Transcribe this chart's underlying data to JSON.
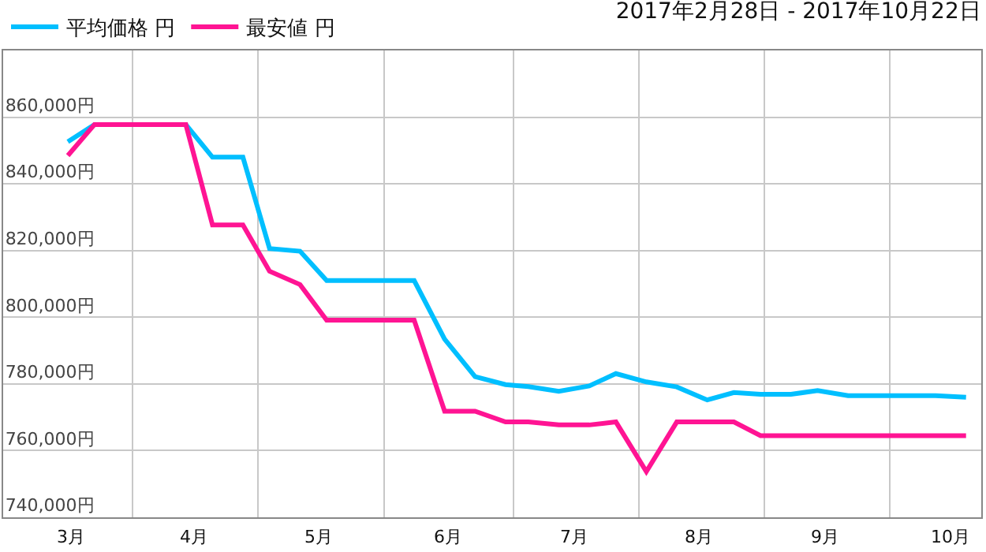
{
  "chart_data": {
    "type": "line",
    "title": "2017年2月28日 - 2017年10月22日",
    "x": [
      "2017-02-28",
      "2017-03-07",
      "2017-03-31",
      "2017-04-07",
      "2017-04-15",
      "2017-04-22",
      "2017-04-30",
      "2017-05-07",
      "2017-05-30",
      "2017-06-07",
      "2017-06-15",
      "2017-06-23",
      "2017-06-29",
      "2017-07-07",
      "2017-07-15",
      "2017-07-22",
      "2017-07-30",
      "2017-08-07",
      "2017-08-15",
      "2017-08-22",
      "2017-08-29",
      "2017-09-06",
      "2017-09-13",
      "2017-09-21",
      "2017-10-14",
      "2017-10-22"
    ],
    "series": [
      {
        "name": "平均価格 円",
        "color": "#00bfff",
        "values": [
          852600,
          857800,
          857800,
          848000,
          848000,
          820600,
          819800,
          811000,
          811000,
          793400,
          782200,
          779800,
          779200,
          777800,
          779400,
          783100,
          780600,
          779100,
          775200,
          777400,
          776900,
          776900,
          778000,
          776500,
          776500,
          776000
        ]
      },
      {
        "name": "最安値 円",
        "color": "#ff1493",
        "values": [
          848500,
          857800,
          857800,
          827700,
          827700,
          813800,
          809800,
          799100,
          799100,
          771800,
          771800,
          768600,
          768600,
          767700,
          767700,
          768600,
          753700,
          768600,
          768600,
          768600,
          764500,
          764500,
          764500,
          764500,
          764500,
          764500
        ]
      }
    ],
    "xlim": [
      "2017-02-11",
      "2017-10-26"
    ],
    "xticks": [
      {
        "value": "2017-03-01",
        "label": "3月"
      },
      {
        "value": "2017-03-17",
        "label": null
      },
      {
        "value": "2017-04-02",
        "label": "4月"
      },
      {
        "value": "2017-04-19",
        "label": null
      },
      {
        "value": "2017-05-05",
        "label": "5月"
      },
      {
        "value": "2017-05-22",
        "label": null
      },
      {
        "value": "2017-06-08",
        "label": "6月"
      },
      {
        "value": "2017-06-25",
        "label": null
      },
      {
        "value": "2017-07-11",
        "label": "7月"
      },
      {
        "value": "2017-07-28",
        "label": null
      },
      {
        "value": "2017-08-13",
        "label": "8月"
      },
      {
        "value": "2017-08-30",
        "label": null
      },
      {
        "value": "2017-09-15",
        "label": "9月"
      },
      {
        "value": "2017-10-02",
        "label": null
      },
      {
        "value": "2017-10-18",
        "label": "10月"
      }
    ],
    "ylim": [
      740000,
      880000
    ],
    "yticks": [
      {
        "value": 740000,
        "label": "740,000円"
      },
      {
        "value": 760000,
        "label": "760,000円"
      },
      {
        "value": 780000,
        "label": "780,000円"
      },
      {
        "value": 800000,
        "label": "800,000円"
      },
      {
        "value": 820000,
        "label": "820,000円"
      },
      {
        "value": 840000,
        "label": "840,000円"
      },
      {
        "value": 860000,
        "label": "860,000円"
      }
    ],
    "grid": true,
    "legend": "top left",
    "marker": "none",
    "line_style": "solid"
  }
}
